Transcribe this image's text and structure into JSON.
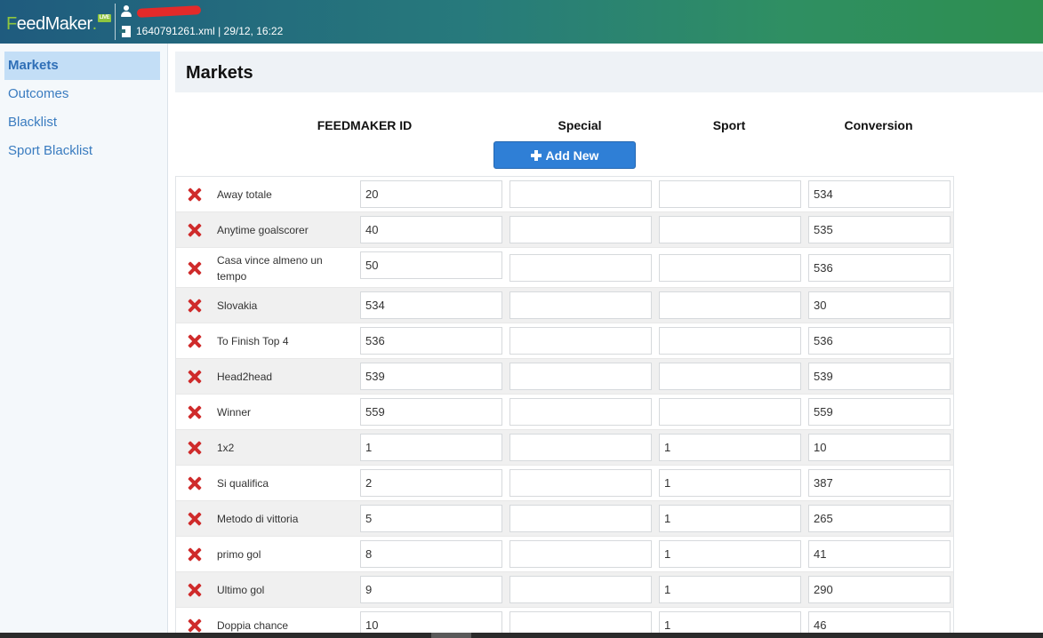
{
  "header": {
    "logo_f": "F",
    "logo_rest": "eedMaker",
    "logo_dot": ".",
    "logo_badge": "LIVE",
    "file_info": "1640791261.xml | 29/12, 16:22"
  },
  "sidebar": {
    "items": [
      {
        "label": "Markets",
        "active": true
      },
      {
        "label": "Outcomes",
        "active": false
      },
      {
        "label": "Blacklist",
        "active": false
      },
      {
        "label": "Sport Blacklist",
        "active": false
      }
    ]
  },
  "main": {
    "title": "Markets",
    "columns": [
      "FEEDMAKER ID",
      "Special",
      "Sport",
      "Conversion"
    ],
    "add_new_label": "Add New",
    "rows": [
      {
        "name": "Away totale",
        "feedmaker_id": "20",
        "special": "",
        "sport": "",
        "conversion": "534"
      },
      {
        "name": "Anytime goalscorer",
        "feedmaker_id": "40",
        "special": "",
        "sport": "",
        "conversion": "535"
      },
      {
        "name": "Casa vince almeno un tempo",
        "feedmaker_id": "50",
        "special": "",
        "sport": "",
        "conversion": "536"
      },
      {
        "name": "Slovakia",
        "feedmaker_id": "534",
        "special": "",
        "sport": "",
        "conversion": "30"
      },
      {
        "name": "To Finish Top 4",
        "feedmaker_id": "536",
        "special": "",
        "sport": "",
        "conversion": "536"
      },
      {
        "name": "Head2head",
        "feedmaker_id": "539",
        "special": "",
        "sport": "",
        "conversion": "539"
      },
      {
        "name": "Winner",
        "feedmaker_id": "559",
        "special": "",
        "sport": "",
        "conversion": "559"
      },
      {
        "name": "1x2",
        "feedmaker_id": "1",
        "special": "",
        "sport": "1",
        "conversion": "10"
      },
      {
        "name": "Si qualifica",
        "feedmaker_id": "2",
        "special": "",
        "sport": "1",
        "conversion": "387"
      },
      {
        "name": "Metodo di vittoria",
        "feedmaker_id": "5",
        "special": "",
        "sport": "1",
        "conversion": "265"
      },
      {
        "name": "primo gol",
        "feedmaker_id": "8",
        "special": "",
        "sport": "1",
        "conversion": "41"
      },
      {
        "name": "Ultimo gol",
        "feedmaker_id": "9",
        "special": "",
        "sport": "1",
        "conversion": "290"
      },
      {
        "name": "Doppia chance",
        "feedmaker_id": "10",
        "special": "",
        "sport": "1",
        "conversion": "46"
      }
    ]
  },
  "colors": {
    "accent": "#2f7fd6",
    "delete": "#cf2b2b",
    "sidebar_active": "#c3def6",
    "link": "#3a7cc0"
  }
}
